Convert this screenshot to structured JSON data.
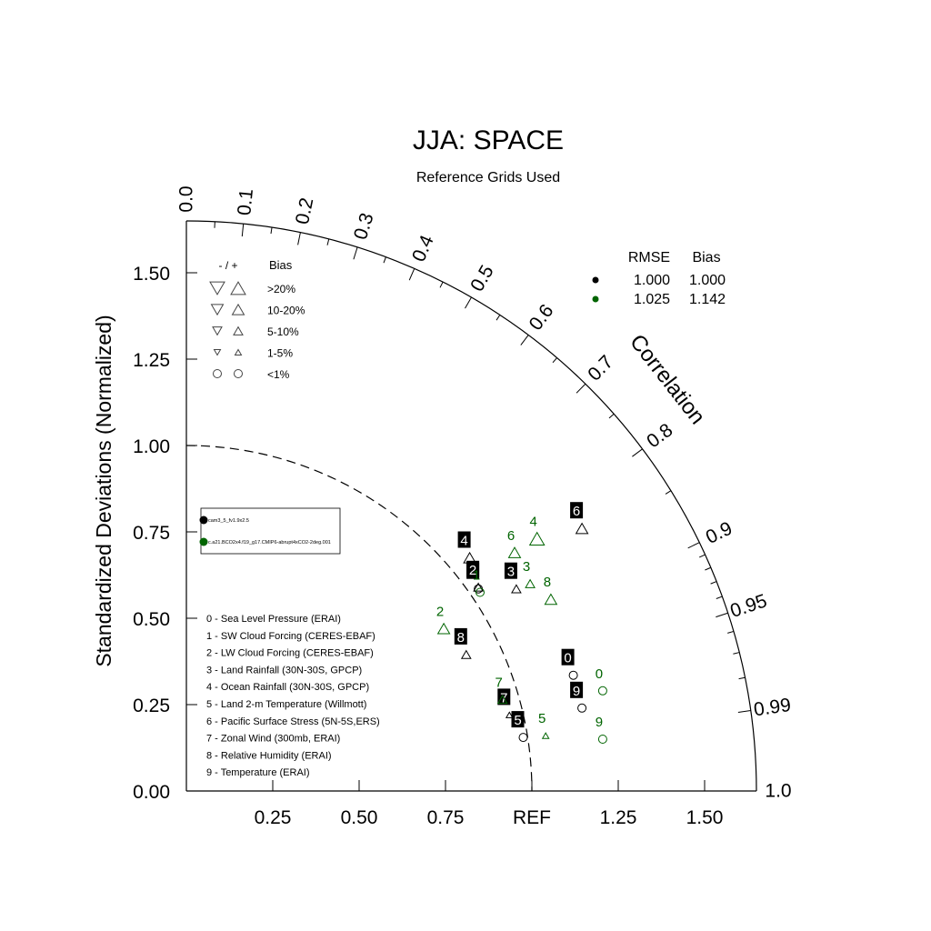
{
  "chart_data": {
    "type": "scatter",
    "title": "JJA: SPACE",
    "subtitle": "Reference Grids Used",
    "ylabel": "Standardized Deviations (Normalized)",
    "xlabel": "",
    "radial_axis_label": "Correlation",
    "ref_label": "REF",
    "xlim": [
      0,
      1.65
    ],
    "ylim": [
      0,
      1.65
    ],
    "x_ticks": [
      {
        "value": 0.25,
        "label": "0.25"
      },
      {
        "value": 0.5,
        "label": "0.50"
      },
      {
        "value": 0.75,
        "label": "0.75"
      },
      {
        "value": 1.25,
        "label": "1.25"
      },
      {
        "value": 1.5,
        "label": "1.50"
      }
    ],
    "y_ticks": [
      {
        "value": 0.0,
        "label": "0.00"
      },
      {
        "value": 0.25,
        "label": "0.25"
      },
      {
        "value": 0.5,
        "label": "0.50"
      },
      {
        "value": 0.75,
        "label": "0.75"
      },
      {
        "value": 1.0,
        "label": "1.00"
      },
      {
        "value": 1.25,
        "label": "1.25"
      },
      {
        "value": 1.5,
        "label": "1.50"
      }
    ],
    "correlation_ticks": [
      {
        "value": 0.0,
        "label": "0.0"
      },
      {
        "value": 0.1,
        "label": "0.1"
      },
      {
        "value": 0.2,
        "label": "0.2"
      },
      {
        "value": 0.3,
        "label": "0.3"
      },
      {
        "value": 0.4,
        "label": "0.4"
      },
      {
        "value": 0.5,
        "label": "0.5"
      },
      {
        "value": 0.6,
        "label": "0.6"
      },
      {
        "value": 0.7,
        "label": "0.7"
      },
      {
        "value": 0.8,
        "label": "0.8"
      },
      {
        "value": 0.9,
        "label": "0.9"
      },
      {
        "value": 0.95,
        "label": "0.95"
      },
      {
        "value": 0.99,
        "label": "0.99"
      },
      {
        "value": 1.0,
        "label": "1.0"
      }
    ],
    "correlation_minor_ticks": [
      0.05,
      0.15,
      0.25,
      0.35,
      0.45,
      0.55,
      0.65,
      0.75,
      0.85,
      0.91,
      0.92,
      0.93,
      0.94,
      0.96,
      0.97,
      0.98
    ],
    "ref_arc_radius": 1.0,
    "series": [
      {
        "name": "cam3_5_fv1.9x2.5",
        "color": "#000000",
        "label_style": "boxed",
        "points": [
          {
            "label": "0",
            "x": 1.12,
            "y": 0.335,
            "bias": "<1%"
          },
          {
            "label": "1",
            "x": 0.845,
            "y": 0.585,
            "bias": "<1%"
          },
          {
            "label": "2",
            "x": 0.845,
            "y": 0.59,
            "bias": "5-10%",
            "dir": "up"
          },
          {
            "label": "3",
            "x": 0.955,
            "y": 0.585,
            "bias": "5-10%",
            "dir": "up"
          },
          {
            "label": "4",
            "x": 0.82,
            "y": 0.675,
            "bias": "10-20%",
            "dir": "up"
          },
          {
            "label": "5",
            "x": 0.975,
            "y": 0.155,
            "bias": "<1%"
          },
          {
            "label": "6",
            "x": 1.145,
            "y": 0.76,
            "bias": "10-20%",
            "dir": "up"
          },
          {
            "label": "7",
            "x": 0.935,
            "y": 0.22,
            "bias": "1-5%",
            "dir": "up"
          },
          {
            "label": "8",
            "x": 0.81,
            "y": 0.395,
            "bias": "5-10%",
            "dir": "up"
          },
          {
            "label": "9",
            "x": 1.145,
            "y": 0.24,
            "bias": "<1%"
          }
        ]
      },
      {
        "name": "c.a21.BCO2x4.f19_g17.CMIP6-abrupt4xCO2-2deg.001",
        "color": "#006400",
        "label_style": "text",
        "points": [
          {
            "label": "0",
            "x": 1.205,
            "y": 0.29,
            "bias": "<1%"
          },
          {
            "label": "1",
            "x": 0.85,
            "y": 0.575,
            "bias": "<1%"
          },
          {
            "label": "2",
            "x": 0.745,
            "y": 0.47,
            "bias": "10-20%",
            "dir": "up"
          },
          {
            "label": "3",
            "x": 0.995,
            "y": 0.6,
            "bias": "5-10%",
            "dir": "up"
          },
          {
            "label": "4",
            "x": 1.015,
            "y": 0.73,
            "bias": ">20%",
            "dir": "up"
          },
          {
            "label": "5",
            "x": 1.04,
            "y": 0.16,
            "bias": "1-5%",
            "dir": "up"
          },
          {
            "label": "6",
            "x": 0.95,
            "y": 0.69,
            "bias": "10-20%",
            "dir": "up"
          },
          {
            "label": "7",
            "x": 0.915,
            "y": 0.265,
            "bias": "5-10%",
            "dir": "up"
          },
          {
            "label": "8",
            "x": 1.055,
            "y": 0.555,
            "bias": "10-20%",
            "dir": "up"
          },
          {
            "label": "9",
            "x": 1.205,
            "y": 0.15,
            "bias": "<1%"
          }
        ]
      }
    ],
    "bias_legend": {
      "header_sign": "- / +",
      "header_bias": "Bias",
      "rows": [
        ">20%",
        "10-20%",
        "5-10%",
        "1-5%",
        "<1%"
      ]
    },
    "summary_table": {
      "col_rmse": "RMSE",
      "col_bias": "Bias",
      "rows": [
        {
          "color": "#000000",
          "rmse": "1.000",
          "bias": "1.000"
        },
        {
          "color": "#006400",
          "rmse": "1.025",
          "bias": "1.142"
        }
      ]
    },
    "variables": [
      "0 - Sea Level Pressure (ERAI)",
      "1 - SW Cloud Forcing (CERES-EBAF)",
      "2 - LW Cloud Forcing (CERES-EBAF)",
      "3 - Land Rainfall (30N-30S, GPCP)",
      "4 - Ocean Rainfall (30N-30S, GPCP)",
      "5 - Land 2-m Temperature (Willmott)",
      "6 - Pacific Surface Stress (5N-5S,ERS)",
      "7 - Zonal Wind (300mb, ERAI)",
      "8 - Relative Humidity (ERAI)",
      "9 - Temperature (ERAI)"
    ]
  }
}
